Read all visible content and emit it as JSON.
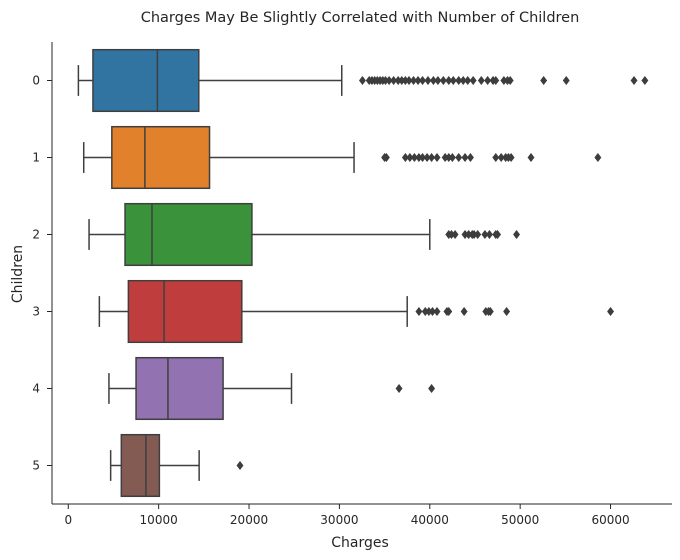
{
  "chart_data": {
    "type": "boxplot",
    "orientation": "horizontal",
    "title": "Charges May Be Slightly Correlated with Number of Children",
    "xlabel": "Charges",
    "ylabel": "Children",
    "xlim": [
      -1800,
      66800
    ],
    "x_ticks": [
      0,
      10000,
      20000,
      30000,
      40000,
      50000,
      60000
    ],
    "grid": false,
    "categories": [
      "0",
      "1",
      "2",
      "3",
      "4",
      "5"
    ],
    "colors": [
      "#3274a1",
      "#e1812c",
      "#3a923a",
      "#c03d3e",
      "#9372b2",
      "#845b53"
    ],
    "boxes": [
      {
        "category": "0",
        "whisker_low": 1120,
        "q1": 2730,
        "median": 9860,
        "q3": 14440,
        "whisker_high": 30260,
        "outliers": [
          32550,
          33300,
          33600,
          33900,
          34200,
          34500,
          34800,
          35100,
          35500,
          36000,
          36500,
          36900,
          37300,
          37700,
          38200,
          38700,
          39200,
          39800,
          40400,
          40900,
          41500,
          42100,
          42600,
          43200,
          43700,
          44200,
          44800,
          45700,
          46400,
          47000,
          47300,
          48200,
          48600,
          48900,
          52600,
          55100,
          62600,
          63800
        ]
      },
      {
        "category": "1",
        "whisker_low": 1710,
        "q1": 4820,
        "median": 8480,
        "q3": 15630,
        "whisker_high": 31620,
        "outliers": [
          35000,
          35200,
          37300,
          37800,
          38300,
          38800,
          39200,
          39700,
          40200,
          40800,
          41700,
          42100,
          42500,
          43200,
          43900,
          44500,
          47300,
          47900,
          48400,
          48700,
          49000,
          51200,
          58600
        ]
      },
      {
        "category": "2",
        "whisker_low": 2300,
        "q1": 6280,
        "median": 9260,
        "q3": 20320,
        "whisker_high": 40000,
        "outliers": [
          42100,
          42400,
          42800,
          43900,
          44300,
          44700,
          44900,
          45300,
          46100,
          46600,
          47300,
          47500,
          49600
        ]
      },
      {
        "category": "3",
        "whisker_low": 3440,
        "q1": 6650,
        "median": 10600,
        "q3": 19200,
        "whisker_high": 37500,
        "outliers": [
          38800,
          39500,
          39900,
          40300,
          40800,
          41900,
          42100,
          43800,
          46200,
          46500,
          46700,
          48500,
          60000
        ]
      },
      {
        "category": "4",
        "whisker_low": 4500,
        "q1": 7500,
        "median": 11030,
        "q3": 17130,
        "whisker_high": 24700,
        "outliers": [
          36600,
          40200
        ]
      },
      {
        "category": "5",
        "whisker_low": 4690,
        "q1": 5870,
        "median": 8590,
        "q3": 10080,
        "whisker_high": 14480,
        "outliers": [
          19000
        ]
      }
    ]
  }
}
